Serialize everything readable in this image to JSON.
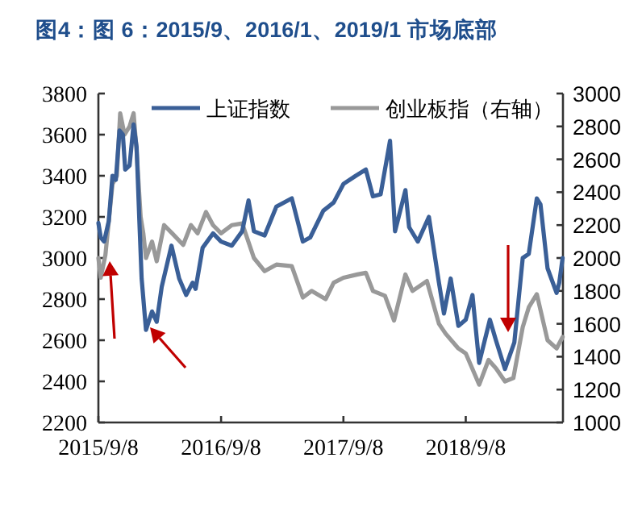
{
  "chart_data": {
    "type": "line",
    "title": "图4：图 6：2015/9、2016/1、2019/1 市场底部",
    "xlim": [
      "2015-09-08",
      "2019-06-25"
    ],
    "xticks": [
      {
        "value": "2015-09-08",
        "label": "2015/9/8"
      },
      {
        "value": "2016-09-08",
        "label": "2016/9/8"
      },
      {
        "value": "2017-09-08",
        "label": "2017/9/8"
      },
      {
        "value": "2018-09-08",
        "label": "2018/9/8"
      }
    ],
    "ylim": [
      2200,
      3800
    ],
    "yticks": [
      2200,
      2400,
      2600,
      2800,
      3000,
      3200,
      3400,
      3600,
      3800
    ],
    "y2lim": [
      1000,
      3000
    ],
    "y2ticks": [
      1000,
      1200,
      1400,
      1600,
      1800,
      2000,
      2200,
      2400,
      2600,
      2800,
      3000
    ],
    "legend": "top",
    "grid": false,
    "marker": "none",
    "line_style": "solid",
    "series": [
      {
        "name": "上证指数",
        "color": "#3a5f97",
        "axis": "y",
        "x": [
          "2015-09-08",
          "2015-09-15",
          "2015-09-25",
          "2015-10-09",
          "2015-10-20",
          "2015-10-30",
          "2015-11-10",
          "2015-11-20",
          "2015-11-27",
          "2015-12-10",
          "2015-12-22",
          "2015-12-31",
          "2016-01-08",
          "2016-01-15",
          "2016-01-28",
          "2016-02-15",
          "2016-02-29",
          "2016-03-15",
          "2016-04-13",
          "2016-05-06",
          "2016-05-27",
          "2016-06-15",
          "2016-06-24",
          "2016-07-15",
          "2016-08-15",
          "2016-09-08",
          "2016-10-10",
          "2016-11-10",
          "2016-11-29",
          "2016-12-15",
          "2017-01-16",
          "2017-02-20",
          "2017-04-07",
          "2017-05-10",
          "2017-06-01",
          "2017-07-10",
          "2017-08-10",
          "2017-09-08",
          "2017-10-15",
          "2017-11-14",
          "2017-12-05",
          "2017-12-28",
          "2018-01-25",
          "2018-02-09",
          "2018-03-12",
          "2018-03-23",
          "2018-04-18",
          "2018-05-21",
          "2018-06-20",
          "2018-07-05",
          "2018-07-25",
          "2018-08-17",
          "2018-09-08",
          "2018-09-28",
          "2018-10-18",
          "2018-11-19",
          "2018-12-07",
          "2019-01-03",
          "2019-01-31",
          "2019-02-25",
          "2019-03-15",
          "2019-04-08",
          "2019-04-19",
          "2019-05-10",
          "2019-06-06",
          "2019-06-14",
          "2019-06-24"
        ],
        "values": [
          3170,
          3100,
          3080,
          3180,
          3400,
          3380,
          3620,
          3600,
          3430,
          3450,
          3650,
          3540,
          3190,
          2900,
          2650,
          2740,
          2690,
          2860,
          3060,
          2900,
          2820,
          2880,
          2850,
          3050,
          3120,
          3080,
          3060,
          3130,
          3280,
          3130,
          3110,
          3250,
          3290,
          3080,
          3100,
          3230,
          3270,
          3360,
          3400,
          3430,
          3300,
          3310,
          3570,
          3130,
          3330,
          3150,
          3080,
          3200,
          2880,
          2730,
          2900,
          2670,
          2700,
          2820,
          2490,
          2700,
          2600,
          2460,
          2590,
          3000,
          3020,
          3290,
          3260,
          2950,
          2830,
          2880,
          3000
        ]
      },
      {
        "name": "创业板指（右轴）",
        "color": "#999999",
        "axis": "y2",
        "x": [
          "2015-09-08",
          "2015-09-15",
          "2015-09-29",
          "2015-10-20",
          "2015-11-02",
          "2015-11-12",
          "2015-11-25",
          "2015-12-10",
          "2015-12-22",
          "2015-12-31",
          "2016-01-12",
          "2016-01-20",
          "2016-01-28",
          "2016-02-15",
          "2016-02-29",
          "2016-03-22",
          "2016-04-15",
          "2016-05-18",
          "2016-06-10",
          "2016-06-30",
          "2016-07-25",
          "2016-08-15",
          "2016-09-08",
          "2016-10-10",
          "2016-11-10",
          "2016-12-15",
          "2017-01-16",
          "2017-02-20",
          "2017-04-07",
          "2017-05-10",
          "2017-06-05",
          "2017-07-17",
          "2017-08-10",
          "2017-09-08",
          "2017-10-20",
          "2017-11-14",
          "2017-12-05",
          "2018-01-10",
          "2018-02-06",
          "2018-03-12",
          "2018-04-02",
          "2018-05-15",
          "2018-06-20",
          "2018-07-10",
          "2018-08-17",
          "2018-09-08",
          "2018-10-18",
          "2018-11-15",
          "2018-12-07",
          "2019-01-03",
          "2019-01-28",
          "2019-02-25",
          "2019-03-15",
          "2019-04-08",
          "2019-05-10",
          "2019-06-06",
          "2019-06-24"
        ],
        "values": [
          2000,
          1880,
          2020,
          2450,
          2500,
          2880,
          2750,
          2800,
          2880,
          2650,
          2250,
          2150,
          2000,
          2100,
          1980,
          2200,
          2150,
          2080,
          2200,
          2150,
          2280,
          2200,
          2150,
          2200,
          2210,
          2000,
          1920,
          1960,
          1950,
          1760,
          1800,
          1750,
          1850,
          1880,
          1900,
          1910,
          1800,
          1770,
          1620,
          1900,
          1800,
          1860,
          1600,
          1540,
          1450,
          1420,
          1230,
          1380,
          1330,
          1250,
          1270,
          1580,
          1700,
          1780,
          1500,
          1450,
          1520
        ]
      }
    ]
  }
}
